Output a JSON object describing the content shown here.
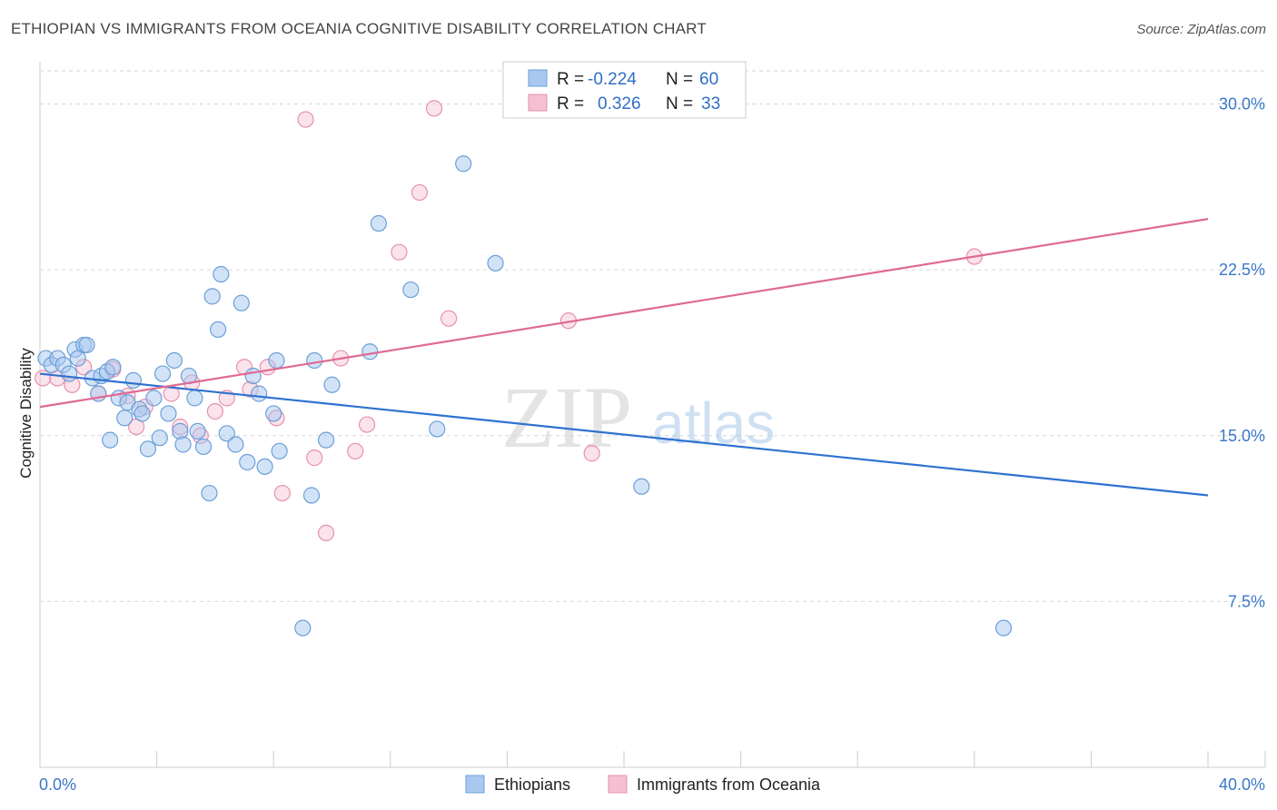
{
  "title": "ETHIOPIAN VS IMMIGRANTS FROM OCEANIA COGNITIVE DISABILITY CORRELATION CHART",
  "source": "Source: ZipAtlas.com",
  "watermark": {
    "zip": "ZIP",
    "atlas": "atlas"
  },
  "colors": {
    "blue_fill": "#a8c8f0",
    "blue_stroke": "#6b9fd8",
    "blue_line": "#2f72d0",
    "pink_fill": "#f5c0d2",
    "pink_stroke": "#e890ad",
    "pink_line": "#e06a93",
    "tick_text": "#3a78c9",
    "grid": "#d6d6d6"
  },
  "legend": {
    "rows": [
      {
        "r_label": "R =",
        "r_value": "-0.224",
        "n_label": "N =",
        "n_value": "60"
      },
      {
        "r_label": "R =",
        "r_value": "0.326",
        "n_label": "N =",
        "n_value": "33"
      }
    ]
  },
  "bottom_legend": {
    "series1": "Ethiopians",
    "series2": "Immigrants from Oceania"
  },
  "chart_data": {
    "type": "scatter",
    "title": "ETHIOPIAN VS IMMIGRANTS FROM OCEANIA COGNITIVE DISABILITY CORRELATION CHART",
    "xlabel": "",
    "ylabel": "Cognitive Disability",
    "xlim": [
      0,
      40
    ],
    "ylim": [
      0,
      31.5
    ],
    "x_tick_labels": [
      "0.0%",
      "40.0%"
    ],
    "y_ticks": [
      7.5,
      15.0,
      22.5,
      30.0
    ],
    "y_tick_labels": [
      "7.5%",
      "15.0%",
      "22.5%",
      "30.0%"
    ],
    "grid": true,
    "series": [
      {
        "name": "Ethiopians",
        "R": -0.224,
        "N": 60,
        "trend": {
          "x": [
            0,
            40
          ],
          "y": [
            17.8,
            12.3
          ]
        },
        "points": [
          [
            0.2,
            18.5
          ],
          [
            0.4,
            18.2
          ],
          [
            0.6,
            18.5
          ],
          [
            0.8,
            18.2
          ],
          [
            1.0,
            17.8
          ],
          [
            1.2,
            18.9
          ],
          [
            1.3,
            18.5
          ],
          [
            1.5,
            19.1
          ],
          [
            1.6,
            19.1
          ],
          [
            1.8,
            17.6
          ],
          [
            2.0,
            16.9
          ],
          [
            2.1,
            17.7
          ],
          [
            2.3,
            17.9
          ],
          [
            2.5,
            18.1
          ],
          [
            2.7,
            16.7
          ],
          [
            2.9,
            15.8
          ],
          [
            3.0,
            16.5
          ],
          [
            3.2,
            17.5
          ],
          [
            3.4,
            16.2
          ],
          [
            3.5,
            16.0
          ],
          [
            3.7,
            14.4
          ],
          [
            3.9,
            16.7
          ],
          [
            4.1,
            14.9
          ],
          [
            4.2,
            17.8
          ],
          [
            4.4,
            16.0
          ],
          [
            4.6,
            18.4
          ],
          [
            4.8,
            15.2
          ],
          [
            4.9,
            14.6
          ],
          [
            5.1,
            17.7
          ],
          [
            5.3,
            16.7
          ],
          [
            5.4,
            15.2
          ],
          [
            5.6,
            14.5
          ],
          [
            5.8,
            12.4
          ],
          [
            5.9,
            21.3
          ],
          [
            6.1,
            19.8
          ],
          [
            6.2,
            22.3
          ],
          [
            6.4,
            15.1
          ],
          [
            6.7,
            14.6
          ],
          [
            6.9,
            21.0
          ],
          [
            7.1,
            13.8
          ],
          [
            7.3,
            17.7
          ],
          [
            7.5,
            16.9
          ],
          [
            7.7,
            13.6
          ],
          [
            8.0,
            16.0
          ],
          [
            8.1,
            18.4
          ],
          [
            8.2,
            14.3
          ],
          [
            9.0,
            6.3
          ],
          [
            9.3,
            12.3
          ],
          [
            9.4,
            18.4
          ],
          [
            9.8,
            14.8
          ],
          [
            10.0,
            17.3
          ],
          [
            11.3,
            18.8
          ],
          [
            11.6,
            24.6
          ],
          [
            12.7,
            21.6
          ],
          [
            13.6,
            15.3
          ],
          [
            14.5,
            27.3
          ],
          [
            15.6,
            22.8
          ],
          [
            20.6,
            12.7
          ],
          [
            33.0,
            6.3
          ],
          [
            2.4,
            14.8
          ]
        ]
      },
      {
        "name": "Immigrants from Oceania",
        "R": 0.326,
        "N": 33,
        "trend": {
          "x": [
            0,
            40
          ],
          "y": [
            16.3,
            24.8
          ]
        },
        "points": [
          [
            0.1,
            17.6
          ],
          [
            0.6,
            17.6
          ],
          [
            1.1,
            17.3
          ],
          [
            1.5,
            18.1
          ],
          [
            2.0,
            16.9
          ],
          [
            2.5,
            18.0
          ],
          [
            3.0,
            16.8
          ],
          [
            3.3,
            15.4
          ],
          [
            3.6,
            16.3
          ],
          [
            4.5,
            16.9
          ],
          [
            4.8,
            15.4
          ],
          [
            5.2,
            17.4
          ],
          [
            5.5,
            15.0
          ],
          [
            6.0,
            16.1
          ],
          [
            6.4,
            16.7
          ],
          [
            7.0,
            18.1
          ],
          [
            7.2,
            17.1
          ],
          [
            7.8,
            18.1
          ],
          [
            8.1,
            15.8
          ],
          [
            8.3,
            12.4
          ],
          [
            9.1,
            29.3
          ],
          [
            9.4,
            14.0
          ],
          [
            9.8,
            10.6
          ],
          [
            10.3,
            18.5
          ],
          [
            10.8,
            14.3
          ],
          [
            11.2,
            15.5
          ],
          [
            12.3,
            23.3
          ],
          [
            13.0,
            26.0
          ],
          [
            13.5,
            29.8
          ],
          [
            14.0,
            20.3
          ],
          [
            18.1,
            20.2
          ],
          [
            18.9,
            14.2
          ],
          [
            32.0,
            23.1
          ]
        ]
      }
    ]
  }
}
